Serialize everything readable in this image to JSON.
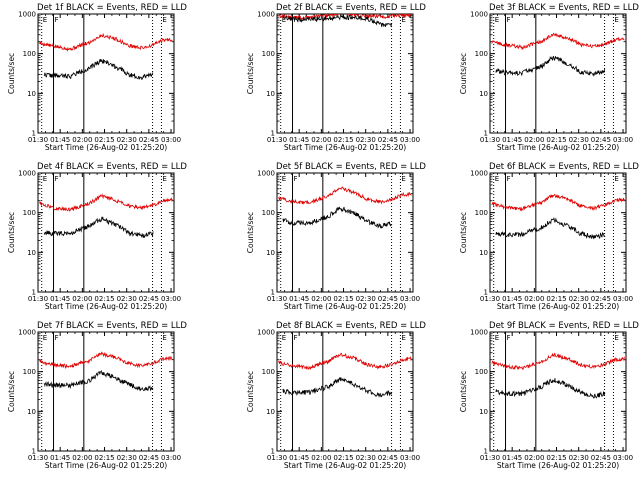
{
  "figure": {
    "title_template": "Det {det} BLACK = Events, RED = LLD",
    "xlabel": "Start Time (26-Aug-02 01:25:20)",
    "ylabel": "Counts/sec"
  },
  "colors": {
    "events": "#000000",
    "lld": "#e00000",
    "axes": "#000000",
    "background": "#ffffff"
  },
  "chart_data": [
    {
      "type": "line",
      "det": "1f",
      "title": "Det 1f BLACK = Events, RED = LLD",
      "xlabel": "Start Time (26-Aug-02 01:25:20)",
      "ylabel": "Counts/sec",
      "yscale": "log",
      "ylim": [
        1,
        1000
      ],
      "yticks": [
        "1",
        "10",
        "100",
        "1000"
      ],
      "xlim_min": [
        90,
        182
      ],
      "xticks": [
        "01:30",
        "01:45",
        "02:00",
        "02:15",
        "02:30",
        "02:45",
        "03:00"
      ],
      "markers": [
        {
          "label": "E",
          "t": 92.5,
          "style": "dotted"
        },
        {
          "label": "F",
          "t": 100.5,
          "style": "solid"
        },
        {
          "label": "",
          "t": 121,
          "style": "solid"
        },
        {
          "label": "",
          "t": 167.5,
          "style": "dotted"
        },
        {
          "label": "E",
          "t": 173.5,
          "style": "dotted"
        }
      ],
      "series": [
        {
          "name": "LLD",
          "color": "#e00000",
          "start": 91,
          "end": 181,
          "x": [
            91,
            100,
            112,
            125,
            133,
            142,
            151,
            160,
            167,
            175,
            181
          ],
          "y": [
            185,
            155,
            130,
            190,
            290,
            240,
            160,
            140,
            160,
            220,
            230
          ]
        },
        {
          "name": "Events",
          "color": "#000000",
          "start": 94,
          "end": 168,
          "x": [
            94,
            100,
            112,
            125,
            133,
            142,
            151,
            160,
            168
          ],
          "y": [
            30,
            28,
            27,
            42,
            68,
            48,
            30,
            25,
            32
          ]
        }
      ]
    },
    {
      "type": "line",
      "det": "2f",
      "title": "Det 2f BLACK = Events, RED = LLD",
      "xlabel": "Start Time (26-Aug-02 01:25:20)",
      "ylabel": "Counts/sec",
      "yscale": "log",
      "ylim": [
        1,
        1000
      ],
      "yticks": [
        "1",
        "10",
        "100",
        "1000"
      ],
      "xlim_min": [
        90,
        182
      ],
      "xticks": [
        "01:30",
        "01:45",
        "02:00",
        "02:15",
        "02:30",
        "02:45",
        "03:00"
      ],
      "markers": [
        {
          "label": "E",
          "t": 92.5,
          "style": "dotted"
        },
        {
          "label": "F",
          "t": 100.5,
          "style": "solid"
        },
        {
          "label": "",
          "t": 121,
          "style": "solid"
        },
        {
          "label": "",
          "t": 167.5,
          "style": "dotted"
        },
        {
          "label": "E",
          "t": 173.5,
          "style": "dotted"
        }
      ],
      "series": [
        {
          "name": "LLD",
          "color": "#e00000",
          "start": 91,
          "end": 181,
          "x": [
            91,
            100,
            112,
            125,
            133,
            142,
            151,
            160,
            167,
            175,
            181
          ],
          "y": [
            900,
            800,
            820,
            900,
            1100,
            950,
            880,
            860,
            880,
            920,
            950
          ]
        },
        {
          "name": "Events",
          "color": "#000000",
          "start": 94,
          "end": 168,
          "x": [
            94,
            100,
            112,
            125,
            133,
            142,
            151,
            160,
            168
          ],
          "y": [
            780,
            730,
            740,
            780,
            850,
            790,
            760,
            540,
            520
          ]
        }
      ]
    },
    {
      "type": "line",
      "det": "3f",
      "title": "Det 3f BLACK = Events, RED = LLD",
      "xlabel": "Start Time (26-Aug-02 01:25:20)",
      "ylabel": "Counts/sec",
      "yscale": "log",
      "ylim": [
        1,
        1000
      ],
      "yticks": [
        "1",
        "10",
        "100",
        "1000"
      ],
      "xlim_min": [
        90,
        182
      ],
      "xticks": [
        "01:30",
        "01:45",
        "02:00",
        "02:15",
        "02:30",
        "02:45",
        "03:00"
      ],
      "markers": [
        {
          "label": "E",
          "t": 92.5,
          "style": "dotted"
        },
        {
          "label": "F",
          "t": 100.5,
          "style": "solid"
        },
        {
          "label": "",
          "t": 121,
          "style": "solid"
        },
        {
          "label": "",
          "t": 167.5,
          "style": "dotted"
        },
        {
          "label": "E",
          "t": 173.5,
          "style": "dotted"
        }
      ],
      "series": [
        {
          "name": "LLD",
          "color": "#e00000",
          "start": 91,
          "end": 181,
          "x": [
            91,
            100,
            112,
            125,
            133,
            142,
            151,
            160,
            167,
            175,
            181
          ],
          "y": [
            200,
            170,
            145,
            200,
            300,
            250,
            170,
            150,
            165,
            220,
            240
          ]
        },
        {
          "name": "Events",
          "color": "#000000",
          "start": 94,
          "end": 168,
          "x": [
            94,
            100,
            112,
            125,
            133,
            142,
            151,
            160,
            168
          ],
          "y": [
            38,
            33,
            32,
            48,
            80,
            55,
            35,
            30,
            37
          ]
        }
      ]
    },
    {
      "type": "line",
      "det": "4f",
      "title": "Det 4f BLACK = Events, RED = LLD",
      "xlabel": "Start Time (26-Aug-02 01:25:20)",
      "ylabel": "Counts/sec",
      "yscale": "log",
      "ylim": [
        1,
        1000
      ],
      "yticks": [
        "1",
        "10",
        "100",
        "1000"
      ],
      "xlim_min": [
        90,
        182
      ],
      "xticks": [
        "01:30",
        "01:45",
        "02:00",
        "02:15",
        "02:30",
        "02:45",
        "03:00"
      ],
      "markers": [
        {
          "label": "E",
          "t": 92.5,
          "style": "dotted"
        },
        {
          "label": "F",
          "t": 100.5,
          "style": "solid"
        },
        {
          "label": "",
          "t": 121,
          "style": "solid"
        },
        {
          "label": "",
          "t": 167.5,
          "style": "dotted"
        },
        {
          "label": "E",
          "t": 173.5,
          "style": "dotted"
        }
      ],
      "series": [
        {
          "name": "LLD",
          "color": "#e00000",
          "start": 91,
          "end": 181,
          "x": [
            91,
            100,
            112,
            125,
            133,
            142,
            151,
            160,
            167,
            175,
            181
          ],
          "y": [
            175,
            130,
            120,
            170,
            260,
            210,
            150,
            130,
            150,
            200,
            215
          ]
        },
        {
          "name": "Events",
          "color": "#000000",
          "start": 94,
          "end": 168,
          "x": [
            94,
            100,
            112,
            125,
            133,
            142,
            151,
            160,
            168
          ],
          "y": [
            32,
            30,
            30,
            45,
            70,
            50,
            32,
            26,
            30
          ]
        }
      ]
    },
    {
      "type": "line",
      "det": "5f",
      "title": "Det 5f BLACK = Events, RED = LLD",
      "xlabel": "Start Time (26-Aug-02 01:25:20)",
      "ylabel": "Counts/sec",
      "yscale": "log",
      "ylim": [
        1,
        1000
      ],
      "yticks": [
        "1",
        "10",
        "100",
        "1000"
      ],
      "xlim_min": [
        90,
        182
      ],
      "xticks": [
        "01:30",
        "01:45",
        "02:00",
        "02:15",
        "02:30",
        "02:45",
        "03:00"
      ],
      "markers": [
        {
          "label": "E",
          "t": 92.5,
          "style": "dotted"
        },
        {
          "label": "F",
          "t": 100.5,
          "style": "solid"
        },
        {
          "label": "",
          "t": 121,
          "style": "solid"
        },
        {
          "label": "",
          "t": 167.5,
          "style": "dotted"
        },
        {
          "label": "E",
          "t": 173.5,
          "style": "dotted"
        }
      ],
      "series": [
        {
          "name": "LLD",
          "color": "#e00000",
          "start": 91,
          "end": 181,
          "x": [
            91,
            100,
            112,
            125,
            133,
            142,
            151,
            160,
            167,
            175,
            181
          ],
          "y": [
            230,
            190,
            175,
            260,
            420,
            320,
            220,
            185,
            210,
            280,
            300
          ]
        },
        {
          "name": "Events",
          "color": "#000000",
          "start": 94,
          "end": 168,
          "x": [
            94,
            100,
            112,
            125,
            133,
            142,
            151,
            160,
            168
          ],
          "y": [
            65,
            55,
            55,
            80,
            130,
            95,
            60,
            45,
            55
          ]
        }
      ]
    },
    {
      "type": "line",
      "det": "6f",
      "title": "Det 6f BLACK = Events, RED = LLD",
      "xlabel": "Start Time (26-Aug-02 01:25:20)",
      "ylabel": "Counts/sec",
      "yscale": "log",
      "ylim": [
        1,
        1000
      ],
      "yticks": [
        "1",
        "10",
        "100",
        "1000"
      ],
      "xlim_min": [
        90,
        182
      ],
      "xticks": [
        "01:30",
        "01:45",
        "02:00",
        "02:15",
        "02:30",
        "02:45",
        "03:00"
      ],
      "markers": [
        {
          "label": "E",
          "t": 92.5,
          "style": "dotted"
        },
        {
          "label": "F",
          "t": 100.5,
          "style": "solid"
        },
        {
          "label": "",
          "t": 121,
          "style": "solid"
        },
        {
          "label": "",
          "t": 167.5,
          "style": "dotted"
        },
        {
          "label": "E",
          "t": 173.5,
          "style": "dotted"
        }
      ],
      "series": [
        {
          "name": "LLD",
          "color": "#e00000",
          "start": 91,
          "end": 181,
          "x": [
            91,
            100,
            112,
            125,
            133,
            142,
            151,
            160,
            167,
            175,
            181
          ],
          "y": [
            170,
            135,
            125,
            180,
            280,
            220,
            150,
            130,
            150,
            205,
            220
          ]
        },
        {
          "name": "Events",
          "color": "#000000",
          "start": 94,
          "end": 168,
          "x": [
            94,
            100,
            112,
            125,
            133,
            142,
            151,
            160,
            168
          ],
          "y": [
            30,
            28,
            28,
            42,
            65,
            47,
            30,
            24,
            28
          ]
        }
      ]
    },
    {
      "type": "line",
      "det": "7f",
      "title": "Det 7f BLACK = Events, RED = LLD",
      "xlabel": "Start Time (26-Aug-02 01:25:20)",
      "ylabel": "Counts/sec",
      "yscale": "log",
      "ylim": [
        1,
        1000
      ],
      "yticks": [
        "1",
        "10",
        "100",
        "1000"
      ],
      "xlim_min": [
        90,
        182
      ],
      "xticks": [
        "01:30",
        "01:45",
        "02:00",
        "02:15",
        "02:30",
        "02:45",
        "03:00"
      ],
      "markers": [
        {
          "label": "E",
          "t": 92.5,
          "style": "dotted"
        },
        {
          "label": "F",
          "t": 100.5,
          "style": "solid"
        },
        {
          "label": "",
          "t": 121,
          "style": "solid"
        },
        {
          "label": "",
          "t": 167.5,
          "style": "dotted"
        },
        {
          "label": "E",
          "t": 173.5,
          "style": "dotted"
        }
      ],
      "series": [
        {
          "name": "LLD",
          "color": "#e00000",
          "start": 91,
          "end": 181,
          "x": [
            91,
            100,
            112,
            125,
            133,
            142,
            151,
            160,
            167,
            175,
            181
          ],
          "y": [
            180,
            150,
            135,
            190,
            280,
            230,
            160,
            140,
            160,
            210,
            225
          ]
        },
        {
          "name": "Events",
          "color": "#000000",
          "start": 94,
          "end": 168,
          "x": [
            94,
            100,
            112,
            125,
            133,
            142,
            151,
            160,
            168
          ],
          "y": [
            50,
            45,
            45,
            60,
            95,
            70,
            48,
            35,
            40
          ]
        }
      ]
    },
    {
      "type": "line",
      "det": "8f",
      "title": "Det 8f BLACK = Events, RED = LLD",
      "xlabel": "Start Time (26-Aug-02 01:25:20)",
      "ylabel": "Counts/sec",
      "yscale": "log",
      "ylim": [
        1,
        1000
      ],
      "yticks": [
        "1",
        "10",
        "100",
        "1000"
      ],
      "xlim_min": [
        90,
        182
      ],
      "xticks": [
        "01:30",
        "01:45",
        "02:00",
        "02:15",
        "02:30",
        "02:45",
        "03:00"
      ],
      "markers": [
        {
          "label": "E",
          "t": 92.5,
          "style": "dotted"
        },
        {
          "label": "F",
          "t": 100.5,
          "style": "solid"
        },
        {
          "label": "",
          "t": 121,
          "style": "solid"
        },
        {
          "label": "",
          "t": 167.5,
          "style": "dotted"
        },
        {
          "label": "E",
          "t": 173.5,
          "style": "dotted"
        }
      ],
      "series": [
        {
          "name": "LLD",
          "color": "#e00000",
          "start": 91,
          "end": 181,
          "x": [
            91,
            100,
            112,
            125,
            133,
            142,
            151,
            160,
            167,
            175,
            181
          ],
          "y": [
            170,
            140,
            125,
            180,
            270,
            220,
            150,
            130,
            150,
            200,
            215
          ]
        },
        {
          "name": "Events",
          "color": "#000000",
          "start": 94,
          "end": 168,
          "x": [
            94,
            100,
            112,
            125,
            133,
            142,
            151,
            160,
            168
          ],
          "y": [
            32,
            30,
            30,
            42,
            65,
            48,
            32,
            25,
            30
          ]
        }
      ]
    },
    {
      "type": "line",
      "det": "9f",
      "title": "Det 9f BLACK = Events, RED = LLD",
      "xlabel": "Start Time (26-Aug-02 01:25:20)",
      "ylabel": "Counts/sec",
      "yscale": "log",
      "ylim": [
        1,
        1000
      ],
      "yticks": [
        "1",
        "10",
        "100",
        "1000"
      ],
      "xlim_min": [
        90,
        182
      ],
      "xticks": [
        "01:30",
        "01:45",
        "02:00",
        "02:15",
        "02:30",
        "02:45",
        "03:00"
      ],
      "markers": [
        {
          "label": "E",
          "t": 92.5,
          "style": "dotted"
        },
        {
          "label": "F",
          "t": 100.5,
          "style": "solid"
        },
        {
          "label": "",
          "t": 121,
          "style": "solid"
        },
        {
          "label": "",
          "t": 167.5,
          "style": "dotted"
        },
        {
          "label": "E",
          "t": 173.5,
          "style": "dotted"
        }
      ],
      "series": [
        {
          "name": "LLD",
          "color": "#e00000",
          "start": 91,
          "end": 181,
          "x": [
            91,
            100,
            112,
            125,
            133,
            142,
            151,
            160,
            167,
            175,
            181
          ],
          "y": [
            170,
            135,
            120,
            175,
            265,
            215,
            150,
            130,
            150,
            200,
            215
          ]
        },
        {
          "name": "Events",
          "color": "#000000",
          "start": 94,
          "end": 168,
          "x": [
            94,
            100,
            112,
            125,
            133,
            142,
            151,
            160,
            168
          ],
          "y": [
            32,
            28,
            28,
            42,
            62,
            46,
            30,
            24,
            28
          ]
        }
      ]
    }
  ]
}
